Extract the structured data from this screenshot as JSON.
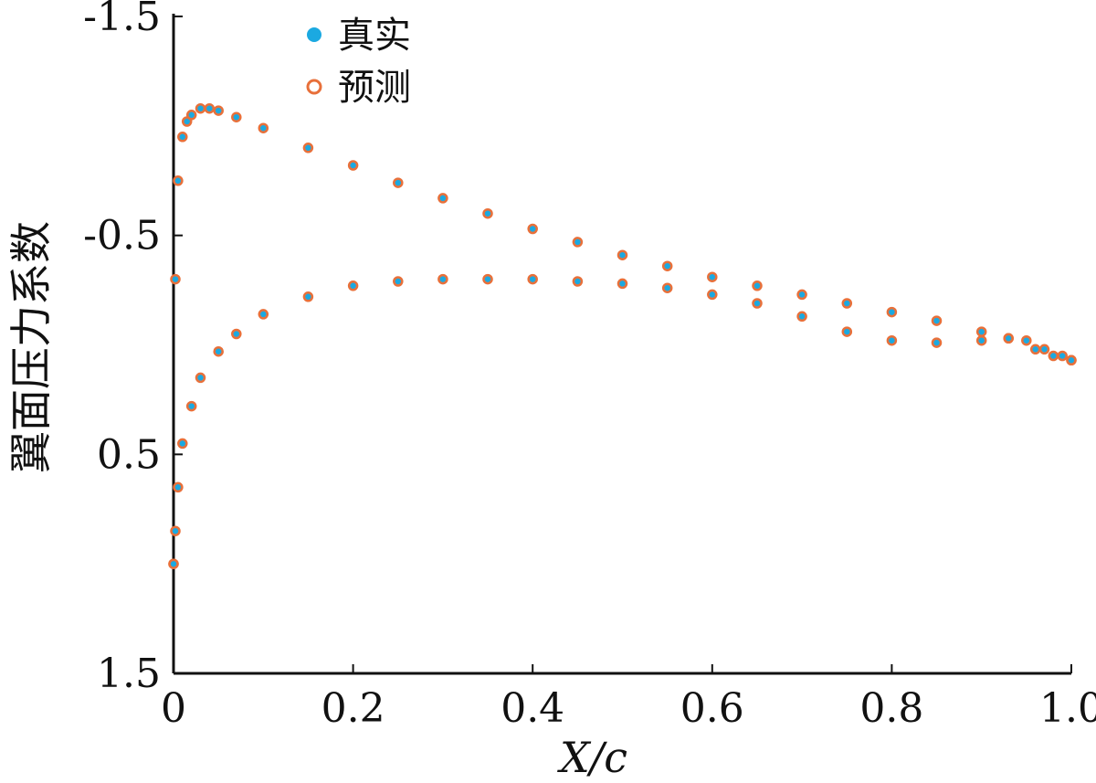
{
  "chart_data": {
    "type": "scatter",
    "xlabel": "X/c",
    "ylabel": "翼面压力系数",
    "xlim": [
      0,
      1.0
    ],
    "ylim": [
      -1.5,
      1.5
    ],
    "y_axis_inverted": true,
    "xticks": [
      "0",
      "0.2",
      "0.4",
      "0.6",
      "0.8",
      "1.0"
    ],
    "yticks": [
      "-1.5",
      "-0.5",
      "0.5",
      "1.5"
    ],
    "grid": false,
    "legend_position": "top-left",
    "series": [
      {
        "name": "真实",
        "color": "#1ba9e1",
        "marker": "filled-circle",
        "curves": [
          {
            "x": [
              0,
              0.002,
              0.005,
              0.01,
              0.015,
              0.02,
              0.03,
              0.04,
              0.05,
              0.07,
              0.1,
              0.15,
              0.2,
              0.25,
              0.3,
              0.35,
              0.4,
              0.45,
              0.5,
              0.55,
              0.6,
              0.65,
              0.7,
              0.75,
              0.8,
              0.85,
              0.9,
              0.93,
              0.96,
              0.98,
              1.0
            ],
            "y": [
              1.0,
              -0.3,
              -0.75,
              -0.95,
              -1.02,
              -1.05,
              -1.08,
              -1.08,
              -1.07,
              -1.04,
              -0.99,
              -0.9,
              -0.82,
              -0.74,
              -0.67,
              -0.6,
              -0.53,
              -0.47,
              -0.41,
              -0.36,
              -0.31,
              -0.27,
              -0.23,
              -0.19,
              -0.15,
              -0.11,
              -0.06,
              -0.03,
              0.02,
              0.05,
              0.07
            ]
          },
          {
            "x": [
              0,
              0.002,
              0.005,
              0.01,
              0.02,
              0.03,
              0.05,
              0.07,
              0.1,
              0.15,
              0.2,
              0.25,
              0.3,
              0.35,
              0.4,
              0.45,
              0.5,
              0.55,
              0.6,
              0.65,
              0.7,
              0.75,
              0.8,
              0.85,
              0.9,
              0.93,
              0.95,
              0.97,
              0.99,
              1.0
            ],
            "y": [
              1.0,
              0.85,
              0.65,
              0.45,
              0.28,
              0.15,
              0.03,
              -0.05,
              -0.14,
              -0.22,
              -0.27,
              -0.29,
              -0.3,
              -0.3,
              -0.3,
              -0.29,
              -0.28,
              -0.26,
              -0.23,
              -0.19,
              -0.13,
              -0.06,
              -0.02,
              -0.01,
              -0.02,
              -0.03,
              -0.02,
              0.02,
              0.05,
              0.07
            ]
          }
        ]
      },
      {
        "name": "预测",
        "color": "#e8703a",
        "marker": "open-circle",
        "curves": [
          {
            "x": [
              0,
              0.002,
              0.005,
              0.01,
              0.015,
              0.02,
              0.03,
              0.04,
              0.05,
              0.07,
              0.1,
              0.15,
              0.2,
              0.25,
              0.3,
              0.35,
              0.4,
              0.45,
              0.5,
              0.55,
              0.6,
              0.65,
              0.7,
              0.75,
              0.8,
              0.85,
              0.9,
              0.93,
              0.96,
              0.98,
              1.0
            ],
            "y": [
              1.0,
              -0.3,
              -0.75,
              -0.95,
              -1.02,
              -1.05,
              -1.08,
              -1.08,
              -1.07,
              -1.04,
              -0.99,
              -0.9,
              -0.82,
              -0.74,
              -0.67,
              -0.6,
              -0.53,
              -0.47,
              -0.41,
              -0.36,
              -0.31,
              -0.27,
              -0.23,
              -0.19,
              -0.15,
              -0.11,
              -0.06,
              -0.03,
              0.02,
              0.05,
              0.07
            ]
          },
          {
            "x": [
              0,
              0.002,
              0.005,
              0.01,
              0.02,
              0.03,
              0.05,
              0.07,
              0.1,
              0.15,
              0.2,
              0.25,
              0.3,
              0.35,
              0.4,
              0.45,
              0.5,
              0.55,
              0.6,
              0.65,
              0.7,
              0.75,
              0.8,
              0.85,
              0.9,
              0.93,
              0.95,
              0.97,
              0.99,
              1.0
            ],
            "y": [
              1.0,
              0.85,
              0.65,
              0.45,
              0.28,
              0.15,
              0.03,
              -0.05,
              -0.14,
              -0.22,
              -0.27,
              -0.29,
              -0.3,
              -0.3,
              -0.3,
              -0.29,
              -0.28,
              -0.26,
              -0.23,
              -0.19,
              -0.13,
              -0.06,
              -0.02,
              -0.01,
              -0.02,
              -0.03,
              -0.02,
              0.02,
              0.05,
              0.07
            ]
          }
        ]
      }
    ]
  }
}
